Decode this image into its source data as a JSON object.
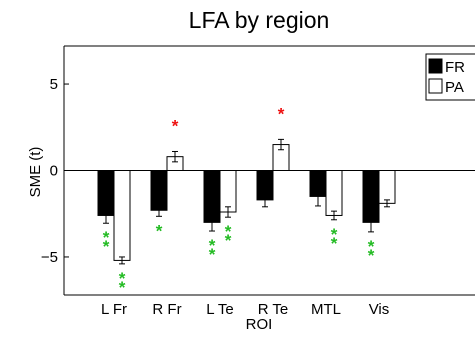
{
  "chart_data": {
    "type": "bar",
    "title": "LFA by region",
    "xlabel": "ROI",
    "ylabel": "SME (t)",
    "ylim": [
      -7.2,
      7.2
    ],
    "yticks": [
      5,
      0,
      -5
    ],
    "ytick_labels": [
      "5",
      "0",
      "−5"
    ],
    "categories": [
      "L Fr",
      "R Fr",
      "L Te",
      "R Te",
      "MTL",
      "Vis"
    ],
    "series": [
      {
        "name": "FR",
        "color": "#000000",
        "values": [
          -2.6,
          -2.3,
          -3.0,
          -1.7,
          -1.5,
          -3.0
        ],
        "errors": [
          0.45,
          0.35,
          0.5,
          0.4,
          0.55,
          0.55
        ]
      },
      {
        "name": "PA",
        "color": "#ffffff",
        "values": [
          -5.2,
          0.8,
          -2.4,
          1.5,
          -2.6,
          -1.9
        ],
        "errors": [
          0.2,
          0.3,
          0.3,
          0.3,
          0.25,
          0.2
        ]
      }
    ],
    "significance": [
      {
        "category": 0,
        "series": 0,
        "marks": 2,
        "color": "#22bb22"
      },
      {
        "category": 0,
        "series": 1,
        "marks": 2,
        "color": "#22bb22"
      },
      {
        "category": 1,
        "series": 0,
        "marks": 1,
        "color": "#22bb22"
      },
      {
        "category": 1,
        "series": 1,
        "marks": 1,
        "color": "#ee1111"
      },
      {
        "category": 2,
        "series": 0,
        "marks": 2,
        "color": "#22bb22"
      },
      {
        "category": 2,
        "series": 1,
        "marks": 2,
        "color": "#22bb22"
      },
      {
        "category": 3,
        "series": 1,
        "marks": 1,
        "color": "#ee1111"
      },
      {
        "category": 4,
        "series": 1,
        "marks": 2,
        "color": "#22bb22"
      },
      {
        "category": 5,
        "series": 0,
        "marks": 2,
        "color": "#22bb22"
      }
    ],
    "legend_position": "top-right",
    "grid": false
  }
}
